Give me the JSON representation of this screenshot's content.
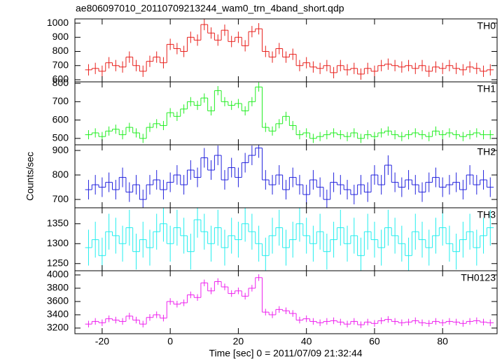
{
  "title": "ae806097010_20110709213244_wam0_trn_4band_short.qdp",
  "ylabel": "Counts/sec",
  "xlabel": "Time [sec] 0 = 2011/07/09 21:32:44",
  "chart_data": [
    {
      "type": "step",
      "label": "TH0",
      "color": "#e8201c",
      "error": 40,
      "xlim": [
        -28,
        96
      ],
      "xticks": [
        -20,
        0,
        20,
        40,
        60,
        80
      ],
      "ylim": [
        585,
        1030
      ],
      "yticks": [
        600,
        700,
        800,
        900,
        1000
      ],
      "x": [
        -24,
        -22,
        -20,
        -18,
        -16,
        -14,
        -12,
        -10,
        -8,
        -6,
        -4,
        -2,
        0,
        2,
        4,
        6,
        8,
        10,
        12,
        14,
        16,
        18,
        20,
        22,
        24,
        26,
        28,
        30,
        32,
        34,
        36,
        38,
        40,
        42,
        44,
        46,
        48,
        50,
        52,
        54,
        56,
        58,
        60,
        62,
        64,
        66,
        68,
        70,
        72,
        74,
        76,
        78,
        80,
        82,
        84,
        86,
        88,
        90,
        92,
        94
      ],
      "values": [
        670,
        680,
        660,
        720,
        700,
        690,
        760,
        700,
        660,
        730,
        760,
        720,
        850,
        820,
        800,
        900,
        880,
        990,
        930,
        880,
        950,
        870,
        900,
        840,
        940,
        960,
        800,
        760,
        820,
        760,
        780,
        700,
        720,
        690,
        680,
        700,
        650,
        700,
        670,
        680,
        640,
        680,
        660,
        700,
        710,
        700,
        690,
        700,
        680,
        700,
        660,
        690,
        680,
        700,
        680,
        670,
        690,
        680,
        660,
        670
      ]
    },
    {
      "type": "step",
      "label": "TH1",
      "color": "#22ee22",
      "error": 25,
      "xlim": [
        -28,
        96
      ],
      "xticks": [
        -20,
        0,
        20,
        40,
        60,
        80
      ],
      "ylim": [
        465,
        808
      ],
      "yticks": [
        500,
        600,
        700,
        800
      ],
      "x": [
        -24,
        -22,
        -20,
        -18,
        -16,
        -14,
        -12,
        -10,
        -8,
        -6,
        -4,
        -2,
        0,
        2,
        4,
        6,
        8,
        10,
        12,
        14,
        16,
        18,
        20,
        22,
        24,
        26,
        28,
        30,
        32,
        34,
        36,
        38,
        40,
        42,
        44,
        46,
        48,
        50,
        52,
        54,
        56,
        58,
        60,
        62,
        64,
        66,
        68,
        70,
        72,
        74,
        76,
        78,
        80,
        82,
        84,
        86,
        88,
        90,
        92,
        94
      ],
      "values": [
        520,
        530,
        510,
        540,
        550,
        520,
        560,
        530,
        500,
        560,
        580,
        570,
        640,
        620,
        660,
        700,
        680,
        720,
        650,
        760,
        700,
        680,
        690,
        650,
        700,
        780,
        560,
        540,
        580,
        620,
        570,
        520,
        530,
        500,
        510,
        520,
        530,
        520,
        510,
        530,
        500,
        520,
        510,
        530,
        540,
        520,
        510,
        520,
        530,
        520,
        510,
        540,
        520,
        530,
        520,
        510,
        520,
        530,
        520,
        520
      ]
    },
    {
      "type": "step",
      "label": "TH2",
      "color": "#2222dd",
      "error": 40,
      "xlim": [
        -28,
        96
      ],
      "xticks": [
        -20,
        0,
        20,
        40,
        60,
        80
      ],
      "ylim": [
        666,
        923
      ],
      "yticks": [
        700,
        800,
        900
      ],
      "x": [
        -24,
        -22,
        -20,
        -18,
        -16,
        -14,
        -12,
        -10,
        -8,
        -6,
        -4,
        -2,
        0,
        2,
        4,
        6,
        8,
        10,
        12,
        14,
        16,
        18,
        20,
        22,
        24,
        26,
        28,
        30,
        32,
        34,
        36,
        38,
        40,
        42,
        44,
        46,
        48,
        50,
        52,
        54,
        56,
        58,
        60,
        62,
        64,
        66,
        68,
        70,
        72,
        74,
        76,
        78,
        80,
        82,
        84,
        86,
        88,
        90,
        92,
        94
      ],
      "values": [
        740,
        760,
        750,
        770,
        740,
        790,
        730,
        760,
        700,
        760,
        780,
        740,
        770,
        800,
        760,
        820,
        790,
        870,
        820,
        880,
        780,
        830,
        790,
        850,
        880,
        910,
        780,
        760,
        800,
        740,
        790,
        760,
        720,
        780,
        750,
        700,
        770,
        760,
        740,
        720,
        760,
        730,
        800,
        760,
        840,
        770,
        750,
        780,
        760,
        730,
        770,
        790,
        750,
        760,
        770,
        740,
        800,
        760,
        780,
        750
      ]
    },
    {
      "type": "step",
      "label": "TH3",
      "color": "#22eeee",
      "error": 45,
      "xlim": [
        -28,
        96
      ],
      "xticks": [
        -20,
        0,
        20,
        40,
        60,
        80
      ],
      "ylim": [
        1232,
        1390
      ],
      "yticks": [
        1250,
        1300,
        1350
      ],
      "x": [
        -24,
        -22,
        -20,
        -18,
        -16,
        -14,
        -12,
        -10,
        -8,
        -6,
        -4,
        -2,
        0,
        2,
        4,
        6,
        8,
        10,
        12,
        14,
        16,
        18,
        20,
        22,
        24,
        26,
        28,
        30,
        32,
        34,
        36,
        38,
        40,
        42,
        44,
        46,
        48,
        50,
        52,
        54,
        56,
        58,
        60,
        62,
        64,
        66,
        68,
        70,
        72,
        74,
        76,
        78,
        80,
        82,
        84,
        86,
        88,
        90,
        92,
        94
      ],
      "values": [
        1290,
        1310,
        1270,
        1330,
        1320,
        1300,
        1340,
        1280,
        1310,
        1290,
        1330,
        1350,
        1300,
        1340,
        1320,
        1280,
        1360,
        1330,
        1300,
        1340,
        1290,
        1320,
        1310,
        1350,
        1330,
        1300,
        1270,
        1320,
        1340,
        1290,
        1310,
        1350,
        1320,
        1300,
        1330,
        1280,
        1310,
        1340,
        1300,
        1320,
        1270,
        1330,
        1310,
        1290,
        1340,
        1320,
        1300,
        1270,
        1330,
        1310,
        1290,
        1320,
        1340,
        1300,
        1280,
        1310,
        1330,
        1290,
        1320,
        1340
      ]
    },
    {
      "type": "step",
      "label": "TH0123",
      "color": "#ee22ee",
      "error": 50,
      "xlim": [
        -28,
        96
      ],
      "xticks": [
        -20,
        0,
        20,
        40,
        60,
        80
      ],
      "ylim": [
        3115,
        4063
      ],
      "yticks": [
        3200,
        3400,
        3600,
        3800,
        4000
      ],
      "x": [
        -24,
        -22,
        -20,
        -18,
        -16,
        -14,
        -12,
        -10,
        -8,
        -6,
        -4,
        -2,
        0,
        2,
        4,
        6,
        8,
        10,
        12,
        14,
        16,
        18,
        20,
        22,
        24,
        26,
        28,
        30,
        32,
        34,
        36,
        38,
        40,
        42,
        44,
        46,
        48,
        50,
        52,
        54,
        56,
        58,
        60,
        62,
        64,
        66,
        68,
        70,
        72,
        74,
        76,
        78,
        80,
        82,
        84,
        86,
        88,
        90,
        92,
        94
      ],
      "values": [
        3260,
        3300,
        3280,
        3340,
        3320,
        3300,
        3380,
        3320,
        3260,
        3360,
        3400,
        3350,
        3600,
        3560,
        3580,
        3700,
        3660,
        3880,
        3760,
        3900,
        3820,
        3720,
        3760,
        3680,
        3800,
        3960,
        3440,
        3400,
        3480,
        3460,
        3420,
        3320,
        3340,
        3300,
        3280,
        3300,
        3310,
        3290,
        3260,
        3300,
        3250,
        3290,
        3270,
        3310,
        3330,
        3300,
        3280,
        3290,
        3310,
        3280,
        3270,
        3300,
        3280,
        3300,
        3290,
        3270,
        3300,
        3310,
        3290,
        3280
      ]
    }
  ]
}
